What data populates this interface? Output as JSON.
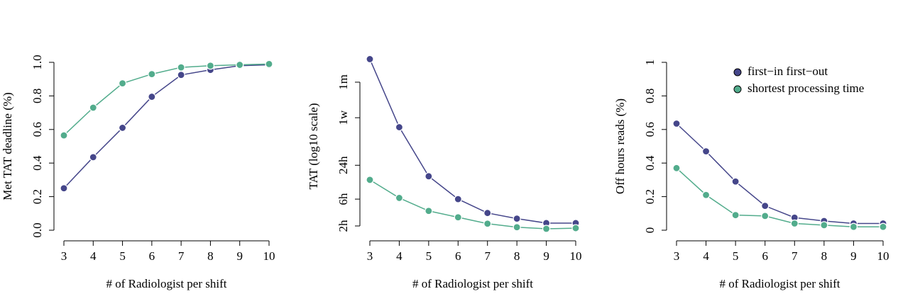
{
  "chart_data": [
    {
      "type": "line",
      "xlabel": "# of Radiologist per shift",
      "ylabel": "Met TAT deadline (%)",
      "x": [
        3,
        4,
        5,
        6,
        7,
        8,
        9,
        10
      ],
      "xlim": [
        3,
        10
      ],
      "xticks": [
        3,
        4,
        5,
        6,
        7,
        8,
        9,
        10
      ],
      "ylim": [
        0,
        1
      ],
      "yticks": [
        {
          "value": 0,
          "label": "0.0"
        },
        0.2,
        0.4,
        0.6,
        0.8,
        {
          "value": 1,
          "label": "1.0"
        }
      ],
      "series": [
        {
          "color": "#45468a",
          "values": [
            0.25,
            0.435,
            0.61,
            0.795,
            0.925,
            0.955,
            0.98,
            0.985
          ]
        },
        {
          "color": "#52ac8c",
          "values": [
            0.565,
            0.73,
            0.875,
            0.93,
            0.97,
            0.98,
            0.985,
            0.99
          ]
        }
      ]
    },
    {
      "type": "line",
      "xlabel": "# of Radiologist per shift",
      "ylabel": "TAT (log10 scale)",
      "x": [
        3,
        4,
        5,
        6,
        7,
        8,
        9,
        10
      ],
      "xlim": [
        3,
        10
      ],
      "xticks": [
        3,
        4,
        5,
        6,
        7,
        8,
        9,
        10
      ],
      "ylog": true,
      "ylim": [
        2,
        720
      ],
      "yticks": [
        {
          "value": 2,
          "label": "2h"
        },
        {
          "value": 6,
          "label": "6h"
        },
        {
          "value": 24,
          "label": "24h"
        },
        {
          "value": 168,
          "label": "1w"
        },
        {
          "value": 720,
          "label": "1m"
        }
      ],
      "series": [
        {
          "color": "#45468a",
          "values": [
            1850,
            114,
            15.3,
            6,
            3.4,
            2.7,
            2.25,
            2.25
          ]
        },
        {
          "color": "#52ac8c",
          "values": [
            13.2,
            6.3,
            3.7,
            2.85,
            2.2,
            1.9,
            1.78,
            1.83
          ]
        }
      ]
    },
    {
      "type": "line",
      "xlabel": "# of Radiologist per shift",
      "ylabel": "Off hours reads (%)",
      "x": [
        3,
        4,
        5,
        6,
        7,
        8,
        9,
        10
      ],
      "xlim": [
        3,
        10
      ],
      "xticks": [
        3,
        4,
        5,
        6,
        7,
        8,
        9,
        10
      ],
      "ylim": [
        0,
        1
      ],
      "legend": "top-right",
      "yticks": [
        0,
        0.2,
        0.4,
        0.6,
        0.8,
        1
      ],
      "series": [
        {
          "name": "first−in first−out",
          "color": "#45468a",
          "values": [
            0.635,
            0.47,
            0.29,
            0.145,
            0.075,
            0.055,
            0.04,
            0.04
          ]
        },
        {
          "name": "shortest processing time",
          "color": "#52ac8c",
          "values": [
            0.37,
            0.21,
            0.09,
            0.085,
            0.04,
            0.03,
            0.02,
            0.02
          ]
        }
      ]
    }
  ]
}
